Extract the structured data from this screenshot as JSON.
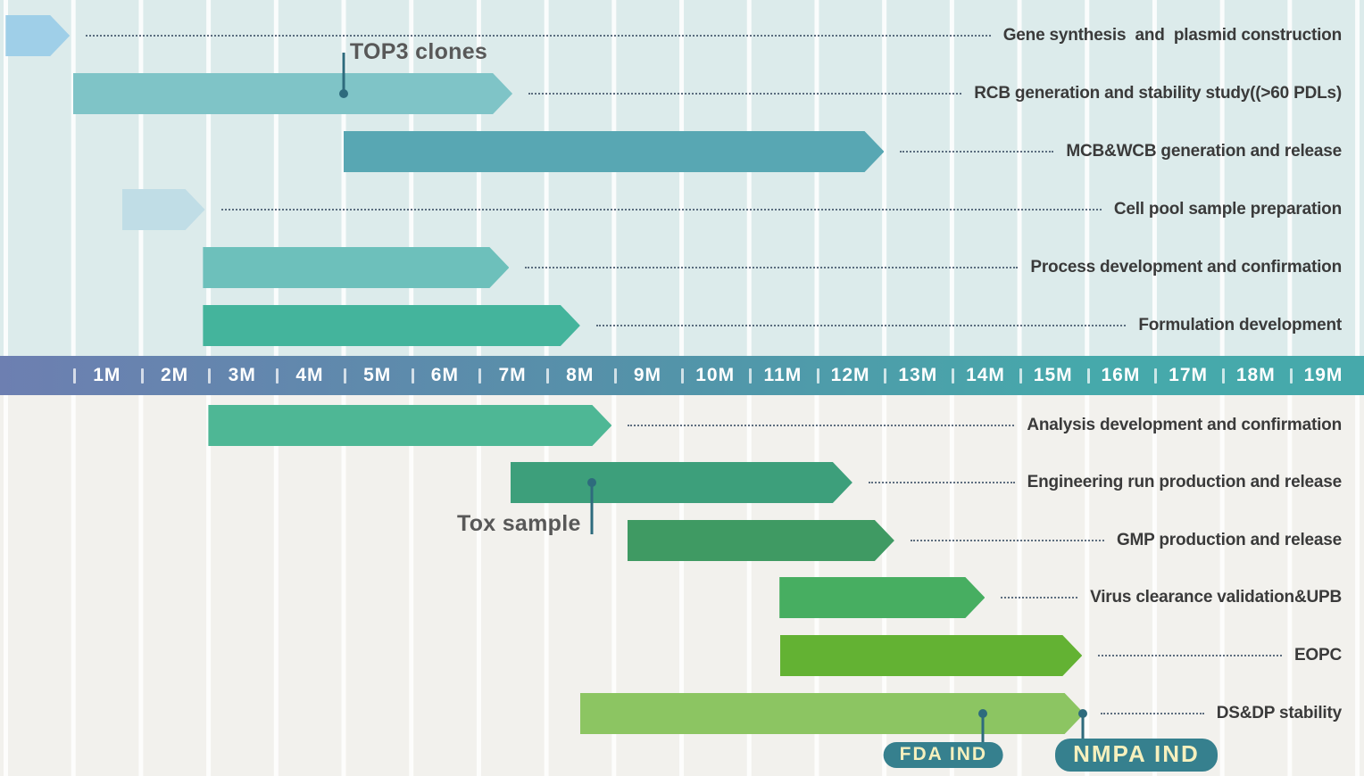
{
  "chart_data": {
    "type": "gantt",
    "title": "",
    "x_unit": "month",
    "x_range": [
      0,
      19
    ],
    "x_ticks": [
      "1M",
      "2M",
      "3M",
      "4M",
      "5M",
      "6M",
      "7M",
      "8M",
      "9M",
      "10M",
      "11M",
      "12M",
      "13M",
      "14M",
      "15M",
      "16M",
      "17M",
      "18M",
      "19M"
    ],
    "grid": true,
    "sections": [
      "top",
      "bottom"
    ],
    "tasks": [
      {
        "label": "Gene synthesis  and  plasmid construction",
        "start": -1.0,
        "end": -0.05,
        "section": "top",
        "color": "#9fcfe8"
      },
      {
        "label": "RCB generation and stability study((>60 PDLs)",
        "start": 0.0,
        "end": 6.5,
        "section": "top",
        "color": "#7fc4c7"
      },
      {
        "label": "MCB&WCB generation and release",
        "start": 4.0,
        "end": 12.0,
        "section": "top",
        "color": "#58a7b3"
      },
      {
        "label": "Cell pool sample preparation",
        "start": 0.72,
        "end": 1.95,
        "section": "top",
        "color": "#c0dde6"
      },
      {
        "label": "Process development and confirmation",
        "start": 1.92,
        "end": 6.45,
        "section": "top",
        "color": "#6dc0bb"
      },
      {
        "label": "Formulation development",
        "start": 1.92,
        "end": 7.5,
        "section": "top",
        "color": "#44b49c"
      },
      {
        "label": "Analysis development and confirmation",
        "start": 2.0,
        "end": 7.97,
        "section": "bottom",
        "color": "#4eb795"
      },
      {
        "label": "Engineering run production and release",
        "start": 6.47,
        "end": 11.53,
        "section": "bottom",
        "color": "#3d9f7b"
      },
      {
        "label": "GMP production and release",
        "start": 8.2,
        "end": 12.15,
        "section": "bottom",
        "color": "#3f9a63"
      },
      {
        "label": "Virus clearance validation&UPB",
        "start": 10.45,
        "end": 13.49,
        "section": "bottom",
        "color": "#47ae61"
      },
      {
        "label": "EOPC",
        "start": 10.46,
        "end": 14.93,
        "section": "bottom",
        "color": "#63b233"
      },
      {
        "label": "DS&DP stability",
        "start": 7.5,
        "end": 14.96,
        "section": "bottom",
        "color": "#8cc562"
      }
    ],
    "milestones": [
      {
        "label": "TOP3 clones",
        "month": 4.0,
        "task_index": 1,
        "placement": "above-right"
      },
      {
        "label": "Tox sample",
        "month": 7.67,
        "task_index": 7,
        "placement": "below-left"
      },
      {
        "label": "FDA IND",
        "month": 13.46,
        "task_index": 11,
        "placement": "pill-left"
      },
      {
        "label": "NMPA IND",
        "month": 14.94,
        "task_index": 11,
        "placement": "pill-right"
      }
    ],
    "legend": null,
    "colors": {
      "section_top_bg": "#dcebeb",
      "section_bottom_bg": "#f2f1ed",
      "gridline": "rgba(255,255,255,0.85)",
      "axis_gradient_left": "#6d7fb1",
      "axis_gradient_mid": "#5591a9",
      "axis_gradient_right": "#46a9ab",
      "axis_text": "#ffffff",
      "task_label_text": "#3a3a3a",
      "leader_dots": "#44566b",
      "marker": "#2e6b7d",
      "marker_text": "#585858",
      "pill_bg": "#36808e",
      "pill_text": "#f6f0bd"
    }
  }
}
